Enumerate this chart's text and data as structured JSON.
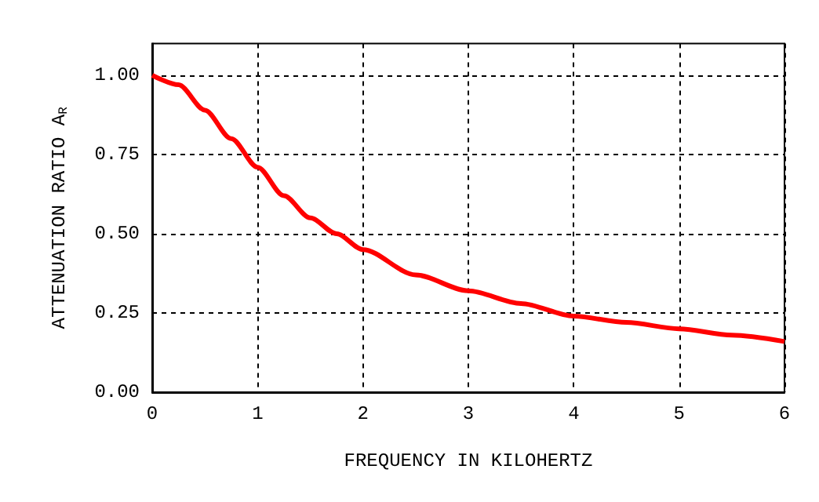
{
  "chart_data": {
    "type": "line",
    "xlabel": "FREQUENCY IN KILOHERTZ",
    "ylabel": "ATTENUATION RATIO A$_{R}$",
    "x": [
      0,
      0.25,
      0.5,
      0.75,
      1,
      1.25,
      1.5,
      1.75,
      2,
      2.5,
      3,
      3.5,
      4,
      4.5,
      5,
      5.5,
      6
    ],
    "series": [
      {
        "color": "#ff0000",
        "values": [
          1.0,
          0.97,
          0.89,
          0.8,
          0.71,
          0.62,
          0.55,
          0.5,
          0.45,
          0.37,
          0.32,
          0.28,
          0.24,
          0.22,
          0.2,
          0.18,
          0.16
        ]
      }
    ],
    "xlim": [
      0,
      6
    ],
    "xticks": [
      0,
      1,
      2,
      3,
      4,
      5,
      6
    ],
    "ylim": [
      0,
      1.1
    ],
    "yticks": [
      {
        "value": 0,
        "label": "0.00"
      },
      {
        "value": 0.25,
        "label": "0.25"
      },
      {
        "value": 0.5,
        "label": "0.50"
      },
      {
        "value": 0.75,
        "label": "0.75"
      },
      {
        "value": 1,
        "label": "1.00"
      }
    ],
    "grid": true,
    "marker": "none",
    "line_style": "solid"
  }
}
